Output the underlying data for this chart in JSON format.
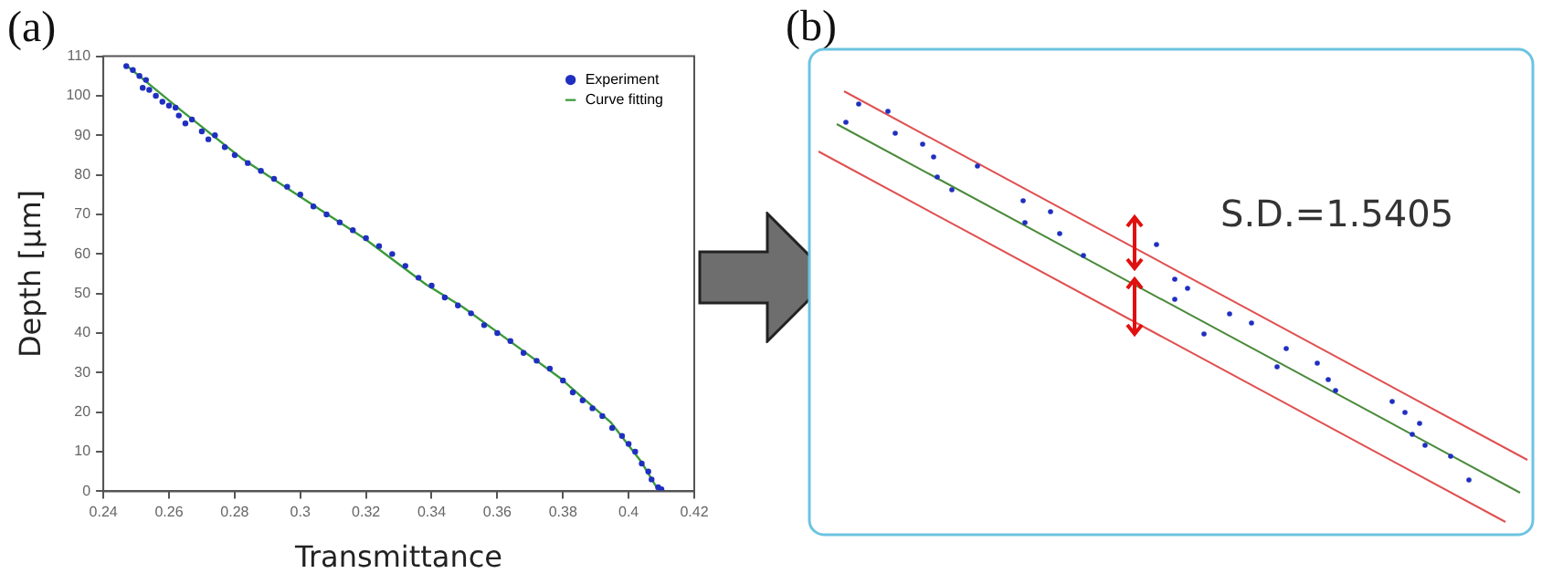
{
  "chart_data": [
    {
      "type": "scatter",
      "title": "(a)",
      "xlabel": "Transmittance",
      "ylabel": "Depth [μm]",
      "xlim": [
        0.24,
        0.42
      ],
      "xticks": [
        0.24,
        0.26,
        0.28,
        0.3,
        0.32,
        0.34,
        0.36,
        0.38,
        0.4,
        0.42
      ],
      "ylim": [
        0,
        110
      ],
      "yticks": [
        0,
        10,
        20,
        30,
        40,
        50,
        60,
        70,
        80,
        90,
        100,
        110
      ],
      "grid": false,
      "legend": "top right",
      "series": [
        {
          "name": "Experiment",
          "type": "scatter",
          "color": "#1f2fc0",
          "marker": "circle",
          "x": [
            0.247,
            0.249,
            0.251,
            0.252,
            0.253,
            0.254,
            0.256,
            0.258,
            0.26,
            0.262,
            0.263,
            0.265,
            0.267,
            0.27,
            0.272,
            0.274,
            0.277,
            0.28,
            0.284,
            0.288,
            0.292,
            0.296,
            0.3,
            0.304,
            0.308,
            0.312,
            0.316,
            0.32,
            0.324,
            0.328,
            0.332,
            0.336,
            0.34,
            0.344,
            0.348,
            0.352,
            0.356,
            0.36,
            0.364,
            0.368,
            0.372,
            0.376,
            0.38,
            0.383,
            0.386,
            0.389,
            0.392,
            0.395,
            0.398,
            0.4,
            0.402,
            0.404,
            0.406,
            0.407,
            0.409,
            0.41
          ],
          "values": [
            107.5,
            106.5,
            105,
            102,
            104,
            101.5,
            100,
            98.5,
            97.5,
            97,
            95,
            93,
            94,
            91,
            89,
            90,
            87,
            85,
            83,
            81,
            79,
            77,
            75,
            72,
            70,
            68,
            66,
            64,
            62,
            60,
            57,
            54,
            52,
            49,
            47,
            45,
            42,
            40,
            38,
            35,
            33,
            31,
            28,
            25,
            23,
            21,
            19,
            16,
            14,
            12,
            10,
            7,
            5,
            3,
            1,
            0.5
          ]
        },
        {
          "name": "Curve fitting",
          "type": "line",
          "color": "#3a9a3a",
          "marker": "none",
          "x": [
            0.247,
            0.2634,
            0.2821,
            0.3009,
            0.3196,
            0.3383,
            0.3496,
            0.3664,
            0.3795,
            0.3945,
            0.4039,
            0.4086
          ],
          "values": [
            107.7,
            96.5,
            84.2,
            74,
            63.9,
            52.3,
            46.5,
            36.4,
            28.4,
            17.5,
            7.4,
            0.9
          ]
        }
      ]
    },
    {
      "type": "other",
      "title": "(b)",
      "annotations": [
        "S.D.=1.5405"
      ]
    }
  ]
}
